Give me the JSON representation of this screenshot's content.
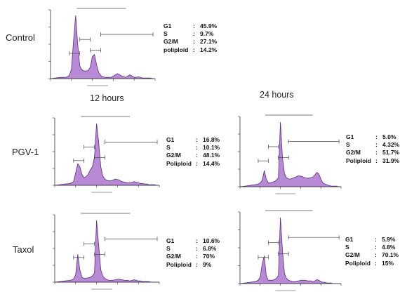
{
  "row_labels": [
    "Control",
    "PGV-1",
    "Taxol"
  ],
  "col_labels": [
    "12 hours",
    "24 hours"
  ],
  "colors": {
    "fill": "#b88ad6",
    "outline": "#5a2a85",
    "axis": "#333333",
    "gate": "#444444"
  },
  "chart_data": [
    {
      "id": "control",
      "type": "area",
      "stats": [
        {
          "label": "G1",
          "value": "45.9%"
        },
        {
          "label": "S",
          "value": "9.7%"
        },
        {
          "label": "G2/M",
          "value": "27.1%"
        },
        {
          "label": "poliploid",
          "value": "14.2%"
        }
      ],
      "x": [
        0,
        5,
        10,
        15,
        18,
        20,
        22,
        24,
        26,
        28,
        30,
        32,
        34,
        36,
        38,
        40,
        42,
        44,
        46,
        48,
        50,
        52,
        55,
        58,
        61,
        64,
        67,
        70,
        72,
        74,
        76,
        78,
        80,
        82,
        84,
        86,
        88,
        90,
        92,
        95,
        98,
        100
      ],
      "y": [
        0,
        1,
        2,
        2,
        5,
        15,
        60,
        100,
        55,
        20,
        14,
        12,
        12,
        13,
        18,
        35,
        38,
        22,
        10,
        5,
        3,
        2,
        2,
        2,
        5,
        8,
        5,
        3,
        2,
        4,
        6,
        4,
        2,
        2,
        3,
        2,
        1,
        1,
        1,
        1,
        0,
        0
      ]
    },
    {
      "id": "pgv1-12h",
      "type": "area",
      "stats": [
        {
          "label": "G1",
          "value": "16.8%"
        },
        {
          "label": "S",
          "value": "10.1%"
        },
        {
          "label": "G2/M",
          "value": "48.1%"
        },
        {
          "label": "Poliploid",
          "value": "14.4%"
        }
      ],
      "x": [
        0,
        5,
        10,
        15,
        18,
        20,
        22,
        24,
        26,
        28,
        30,
        32,
        34,
        36,
        38,
        40,
        42,
        44,
        46,
        48,
        50,
        52,
        55,
        58,
        61,
        64,
        67,
        70,
        72,
        74,
        76,
        78,
        80,
        82,
        84,
        86,
        88,
        90,
        92,
        95,
        98,
        100
      ],
      "y": [
        0,
        1,
        2,
        3,
        6,
        20,
        35,
        30,
        18,
        12,
        14,
        18,
        25,
        30,
        45,
        100,
        70,
        30,
        15,
        10,
        8,
        7,
        8,
        10,
        9,
        6,
        5,
        4,
        4,
        5,
        6,
        5,
        4,
        3,
        3,
        2,
        2,
        1,
        1,
        1,
        0,
        0
      ]
    },
    {
      "id": "pgv1-24h",
      "type": "area",
      "stats": [
        {
          "label": "G1",
          "value": "5.0%"
        },
        {
          "label": "S",
          "value": "4.32%"
        },
        {
          "label": "G2/M",
          "value": "51.7%"
        },
        {
          "label": "Poliploid",
          "value": "31.9%"
        }
      ],
      "x": [
        0,
        5,
        10,
        15,
        18,
        20,
        22,
        24,
        26,
        28,
        30,
        32,
        34,
        36,
        38,
        40,
        42,
        44,
        46,
        48,
        50,
        52,
        55,
        58,
        61,
        64,
        67,
        70,
        72,
        74,
        76,
        78,
        80,
        82,
        84,
        86,
        88,
        90,
        92,
        95,
        98,
        100
      ],
      "y": [
        0,
        1,
        2,
        3,
        4,
        6,
        10,
        25,
        12,
        6,
        6,
        7,
        8,
        10,
        14,
        100,
        45,
        20,
        14,
        12,
        12,
        13,
        15,
        17,
        16,
        14,
        13,
        14,
        15,
        18,
        22,
        20,
        12,
        6,
        4,
        3,
        2,
        1,
        1,
        1,
        0,
        0
      ]
    },
    {
      "id": "taxol-12h",
      "type": "area",
      "stats": [
        {
          "label": "G1",
          "value": "10.6%"
        },
        {
          "label": "S",
          "value": "6.8%"
        },
        {
          "label": "G2/M",
          "value": "70%"
        },
        {
          "label": "Poliploid",
          "value": "9%"
        }
      ],
      "x": [
        0,
        5,
        10,
        15,
        18,
        20,
        22,
        24,
        26,
        28,
        30,
        32,
        34,
        36,
        38,
        40,
        42,
        44,
        46,
        48,
        50,
        52,
        55,
        58,
        61,
        64,
        67,
        70,
        72,
        74,
        76,
        78,
        80,
        82,
        84,
        86,
        88,
        90,
        92,
        95,
        98,
        100
      ],
      "y": [
        0,
        1,
        2,
        3,
        5,
        12,
        45,
        20,
        8,
        6,
        6,
        7,
        8,
        10,
        15,
        100,
        60,
        20,
        10,
        6,
        4,
        3,
        3,
        4,
        5,
        4,
        3,
        3,
        2,
        3,
        4,
        3,
        2,
        2,
        1,
        1,
        1,
        1,
        0,
        0,
        0,
        0
      ]
    },
    {
      "id": "taxol-24h",
      "type": "area",
      "stats": [
        {
          "label": "G1",
          "value": "5.9%"
        },
        {
          "label": "S",
          "value": "4.8%"
        },
        {
          "label": "G2/M",
          "value": "70.1%"
        },
        {
          "label": "Poliploid",
          "value": "15%"
        }
      ],
      "x": [
        0,
        5,
        10,
        15,
        18,
        20,
        22,
        24,
        26,
        28,
        30,
        32,
        34,
        36,
        38,
        40,
        42,
        44,
        46,
        48,
        50,
        52,
        55,
        58,
        61,
        64,
        67,
        70,
        72,
        74,
        76,
        78,
        80,
        82,
        84,
        86,
        88,
        90,
        92,
        95,
        98,
        100
      ],
      "y": [
        0,
        1,
        2,
        3,
        5,
        10,
        30,
        42,
        12,
        5,
        5,
        5,
        6,
        8,
        12,
        100,
        50,
        15,
        8,
        5,
        4,
        3,
        3,
        4,
        5,
        5,
        4,
        4,
        3,
        4,
        6,
        5,
        3,
        2,
        2,
        1,
        1,
        1,
        0,
        0,
        0,
        0
      ]
    }
  ]
}
